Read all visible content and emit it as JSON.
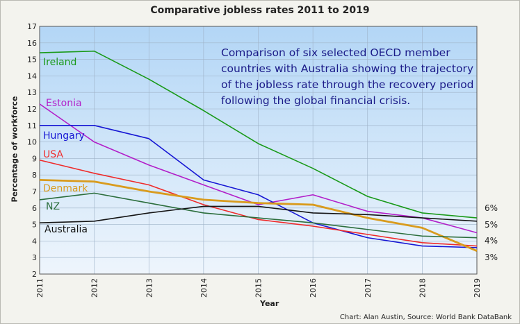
{
  "chart_data": {
    "type": "line",
    "title": "Comparative jobless rates 2011 to 2019",
    "xlabel": "Year",
    "ylabel": "Percentage of workforce",
    "x": [
      2011,
      2012,
      2013,
      2014,
      2015,
      2016,
      2017,
      2018,
      2019
    ],
    "ylim": [
      2,
      17
    ],
    "yticks": [
      "2",
      "3",
      "4",
      "5",
      "6",
      "7",
      "8",
      "9",
      "10",
      "11",
      "12",
      "13",
      "14",
      "15",
      "16",
      "17"
    ],
    "xticks": [
      "2011",
      "2012",
      "2013",
      "2014",
      "2015",
      "2016",
      "2017",
      "2018",
      "2019"
    ],
    "grid": true,
    "annotation": "Comparison of six selected OECD member countries with Australia showing the trajectory of the jobless rate through the recovery period following the global financial crisis.",
    "credit": "Chart: Alan Austin, Source: World Bank DataBank",
    "right_labels": [
      "6%",
      "5%",
      "4%",
      "3%"
    ],
    "series": [
      {
        "name": "Ireland",
        "color": "#1a9a1a",
        "values": [
          15.4,
          15.5,
          13.8,
          11.9,
          9.9,
          8.4,
          6.7,
          5.7,
          5.4
        ]
      },
      {
        "name": "Estonia",
        "color": "#b21fc9",
        "values": [
          12.3,
          10.0,
          8.6,
          7.4,
          6.2,
          6.8,
          5.8,
          5.4,
          4.5
        ]
      },
      {
        "name": "Hungary",
        "color": "#1717d4",
        "values": [
          11.0,
          11.0,
          10.2,
          7.7,
          6.8,
          5.1,
          4.2,
          3.7,
          3.6
        ]
      },
      {
        "name": "USA",
        "color": "#ef2b2b",
        "values": [
          8.9,
          8.1,
          7.4,
          6.2,
          5.3,
          4.9,
          4.4,
          3.9,
          3.7
        ]
      },
      {
        "name": "Denmark",
        "color": "#d99b1d",
        "values": [
          7.7,
          7.6,
          7.0,
          6.5,
          6.3,
          6.2,
          5.4,
          4.8,
          3.4
        ]
      },
      {
        "name": "NZ",
        "color": "#2c6e3d",
        "values": [
          6.5,
          6.9,
          6.3,
          5.7,
          5.4,
          5.1,
          4.7,
          4.3,
          4.2
        ]
      },
      {
        "name": "Australia",
        "color": "#151515",
        "values": [
          5.1,
          5.2,
          5.7,
          6.1,
          6.1,
          5.7,
          5.6,
          5.4,
          5.2
        ]
      }
    ]
  }
}
